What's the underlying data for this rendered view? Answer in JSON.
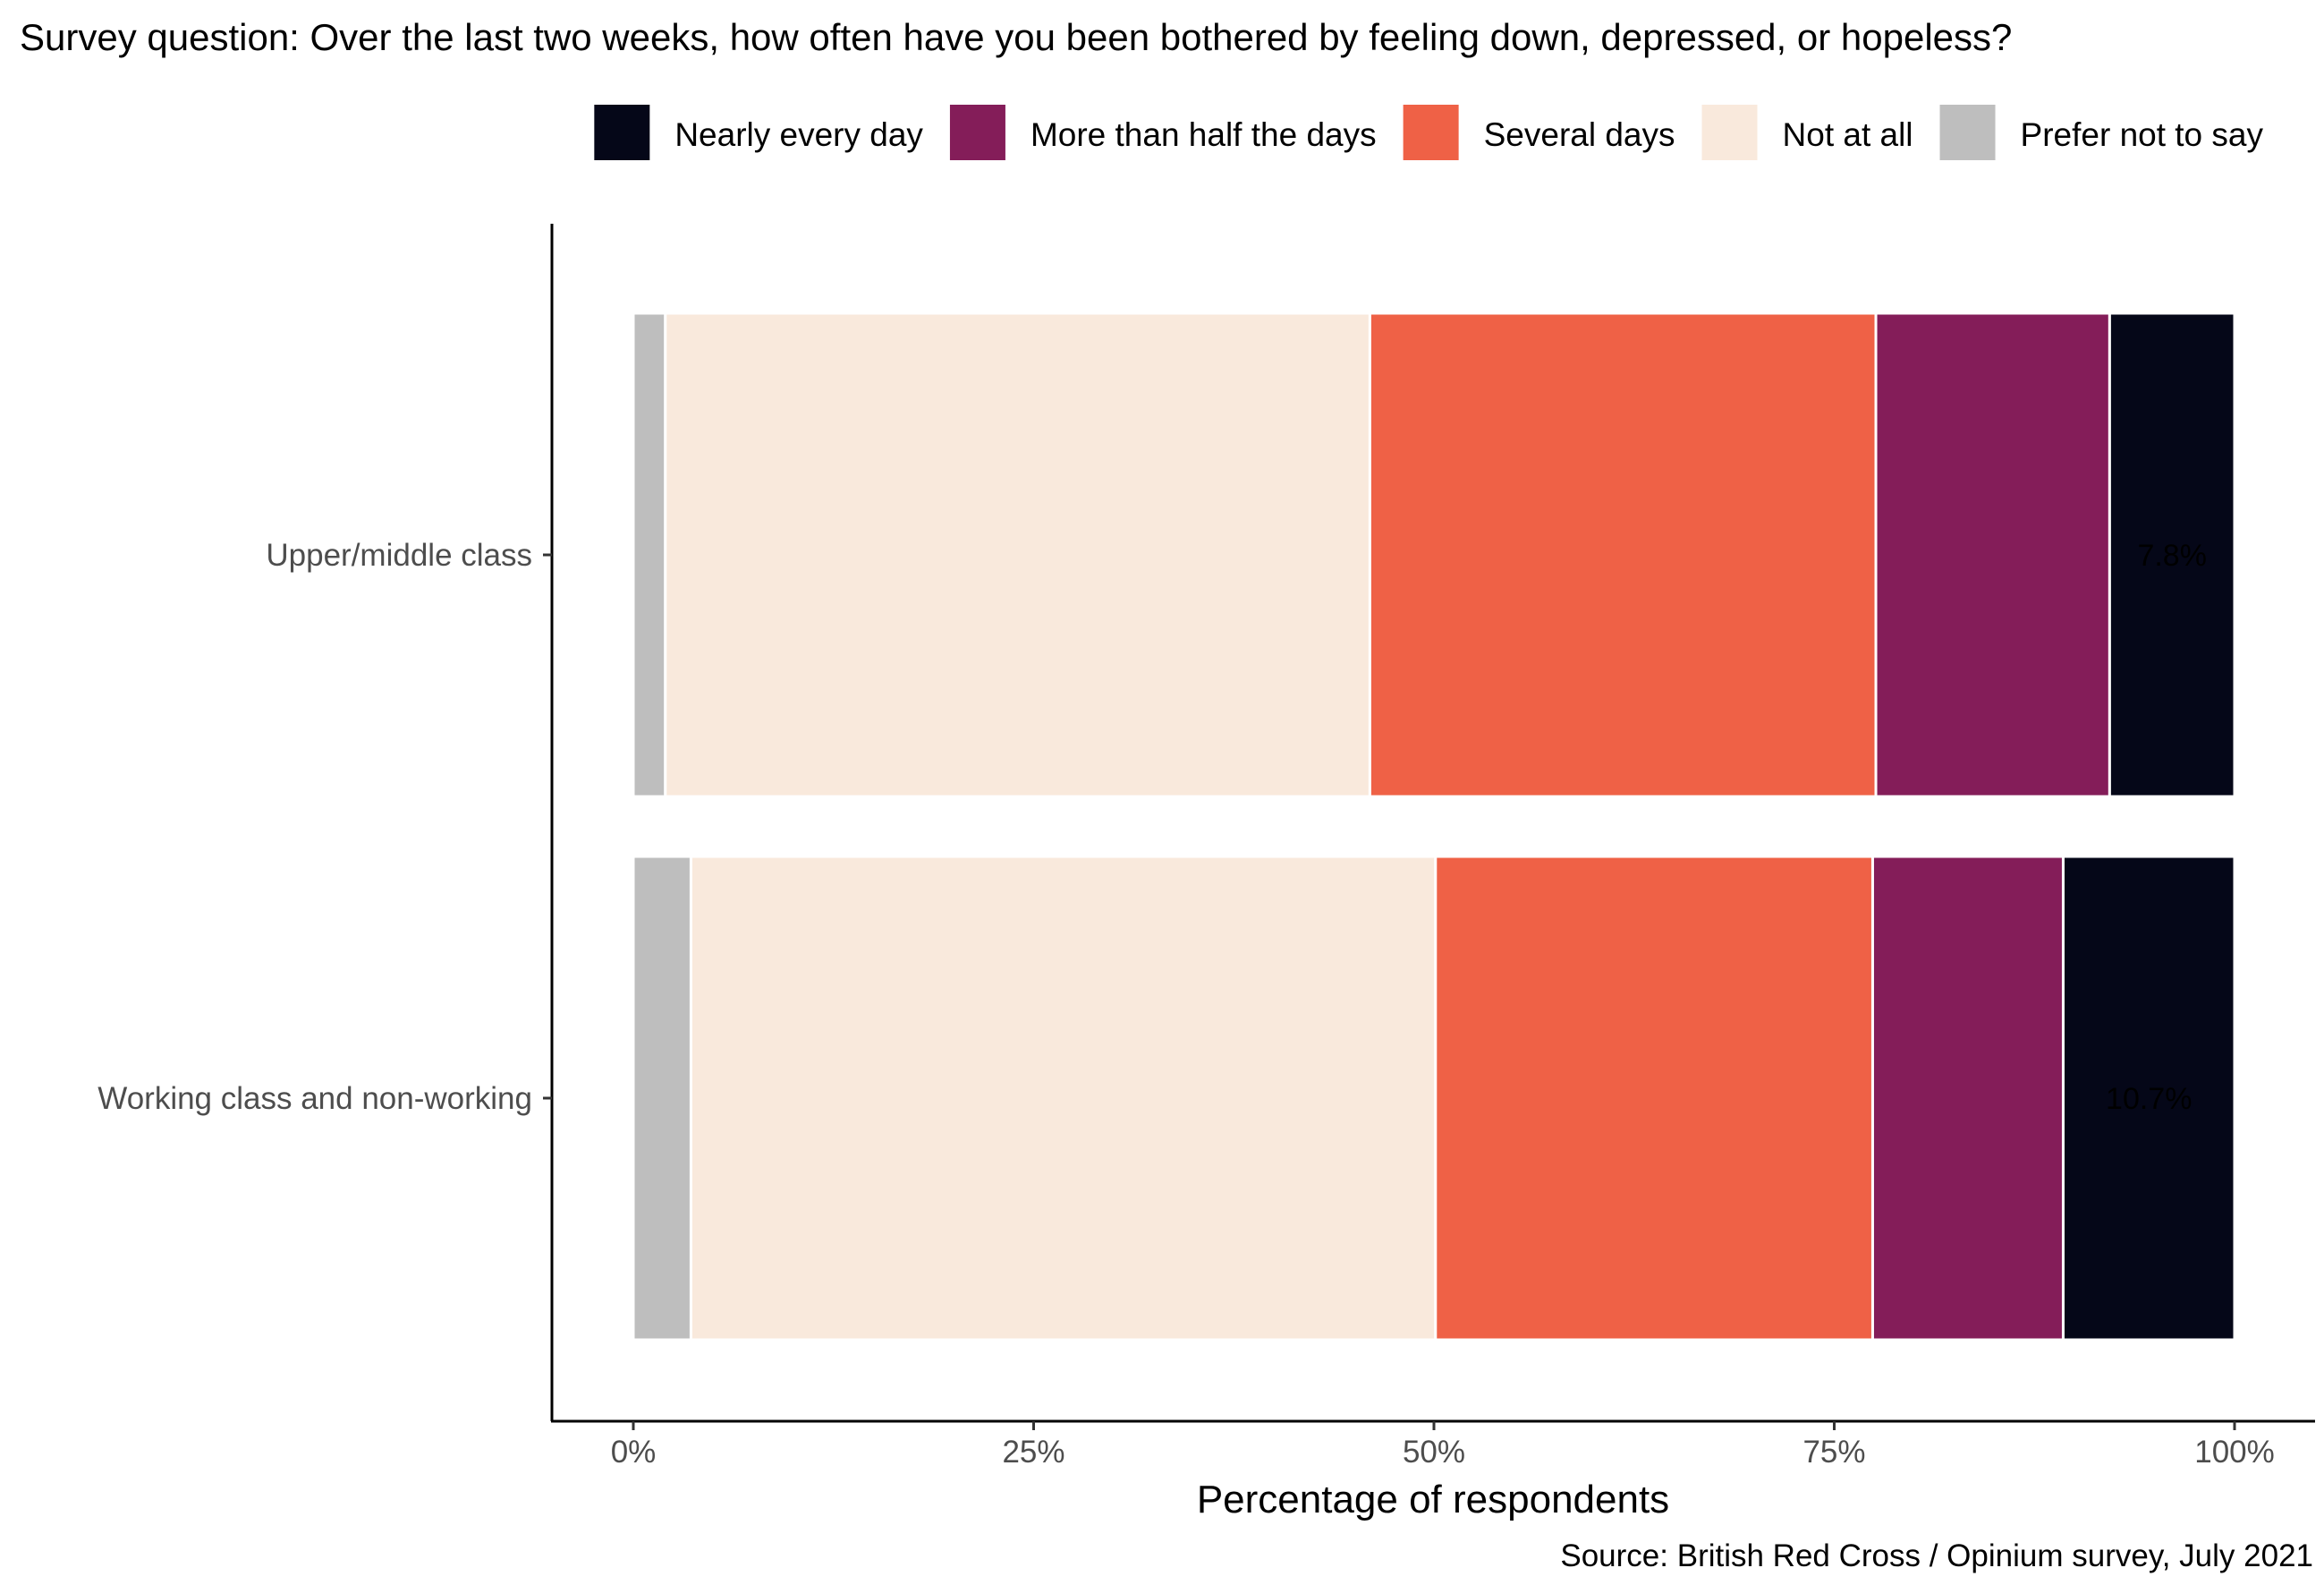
{
  "chart_data": {
    "type": "bar",
    "orientation": "horizontal",
    "stacked": true,
    "title": "Survey question: Over the last two weeks, how often have you been bothered by feeling down, depressed, or hopeless?",
    "xlabel": "Percentage of respondents",
    "ylabel": "",
    "caption": "Source: British Red Cross / Opinium survey, July 2021",
    "xlim": [
      0,
      100
    ],
    "x_ticks": [
      "0%",
      "25%",
      "50%",
      "75%",
      "100%"
    ],
    "x_tick_values": [
      0,
      25,
      50,
      75,
      100
    ],
    "grid": false,
    "legend_position": "top-right",
    "legend": [
      {
        "name": "Nearly every day",
        "color": "#050718"
      },
      {
        "name": "More than half the days",
        "color": "#841d59"
      },
      {
        "name": "Several days",
        "color": "#ef6146"
      },
      {
        "name": "Not at all",
        "color": "#f9e9dc"
      },
      {
        "name": "Prefer not to say",
        "color": "#bebebe"
      }
    ],
    "categories": [
      "Upper/middle class",
      "Working class and non-working"
    ],
    "stack_order": [
      "Prefer not to say",
      "Not at all",
      "Several days",
      "More than half the days",
      "Nearly every day"
    ],
    "series": [
      {
        "name": "Prefer not to say",
        "color": "#bebebe",
        "values": [
          2.0,
          3.6
        ]
      },
      {
        "name": "Not at all",
        "color": "#f9e9dc",
        "values": [
          44.0,
          46.5
        ]
      },
      {
        "name": "Several days",
        "color": "#ef6146",
        "values": [
          31.6,
          27.3
        ]
      },
      {
        "name": "More than half the days",
        "color": "#841d59",
        "values": [
          14.6,
          11.9
        ]
      },
      {
        "name": "Nearly every day",
        "color": "#050718",
        "values": [
          7.8,
          10.7
        ]
      }
    ],
    "data_labels": [
      "7.8%",
      "10.7%"
    ]
  }
}
